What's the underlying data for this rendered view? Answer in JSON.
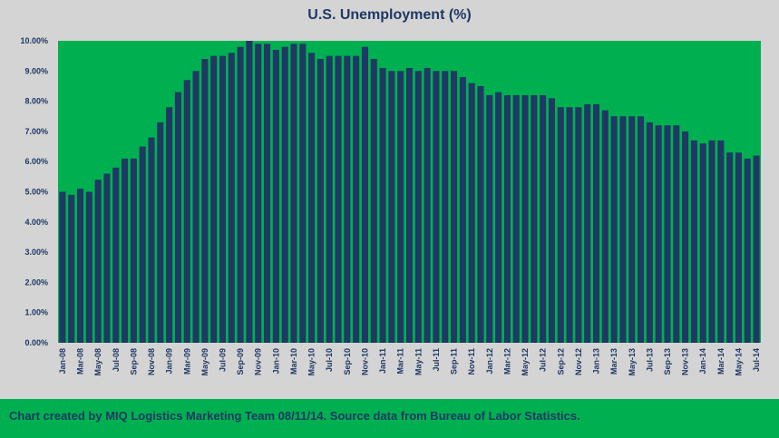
{
  "colors": {
    "background": "#d4d4d4",
    "plot_area": "#00b050",
    "bar": "#1f3864",
    "text": "#1f3864",
    "footer": "#00b050"
  },
  "footer": {
    "text": "Chart created by MIQ Logistics Marketing Team 08/11/14. Source data from Bureau of Labor Statistics."
  },
  "chart_data": {
    "type": "bar",
    "title": "U.S. Unemployment (%)",
    "xlabel": "",
    "ylabel": "",
    "ylim": [
      0,
      10
    ],
    "yticks": [
      "0.00%",
      "1.00%",
      "2.00%",
      "3.00%",
      "4.00%",
      "5.00%",
      "6.00%",
      "7.00%",
      "8.00%",
      "9.00%",
      "10.00%"
    ],
    "grid": false,
    "legend": "none",
    "xtick_labels": [
      "Jan-08",
      "Mar-08",
      "May-08",
      "Jul-08",
      "Sep-08",
      "Nov-08",
      "Jan-09",
      "Mar-09",
      "May-09",
      "Jul-09",
      "Sep-09",
      "Nov-09",
      "Jan-10",
      "Mar-10",
      "May-10",
      "Jul-10",
      "Sep-10",
      "Nov-10",
      "Jan-11",
      "Mar-11",
      "May-11",
      "Jul-11",
      "Sep-11",
      "Nov-11",
      "Jan-12",
      "Mar-12",
      "May-12",
      "Jul-12",
      "Sep-12",
      "Nov-12",
      "Jan-13",
      "Mar-13",
      "May-13",
      "Jul-13",
      "Sep-13",
      "Nov-13",
      "Jan-14",
      "Mar-14",
      "May-14",
      "Jul-14"
    ],
    "categories": [
      "Jan-08",
      "Feb-08",
      "Mar-08",
      "Apr-08",
      "May-08",
      "Jun-08",
      "Jul-08",
      "Aug-08",
      "Sep-08",
      "Oct-08",
      "Nov-08",
      "Dec-08",
      "Jan-09",
      "Feb-09",
      "Mar-09",
      "Apr-09",
      "May-09",
      "Jun-09",
      "Jul-09",
      "Aug-09",
      "Sep-09",
      "Oct-09",
      "Nov-09",
      "Dec-09",
      "Jan-10",
      "Feb-10",
      "Mar-10",
      "Apr-10",
      "May-10",
      "Jun-10",
      "Jul-10",
      "Aug-10",
      "Sep-10",
      "Oct-10",
      "Nov-10",
      "Dec-10",
      "Jan-11",
      "Feb-11",
      "Mar-11",
      "Apr-11",
      "May-11",
      "Jun-11",
      "Jul-11",
      "Aug-11",
      "Sep-11",
      "Oct-11",
      "Nov-11",
      "Dec-11",
      "Jan-12",
      "Feb-12",
      "Mar-12",
      "Apr-12",
      "May-12",
      "Jun-12",
      "Jul-12",
      "Aug-12",
      "Sep-12",
      "Oct-12",
      "Nov-12",
      "Dec-12",
      "Jan-13",
      "Feb-13",
      "Mar-13",
      "Apr-13",
      "May-13",
      "Jun-13",
      "Jul-13",
      "Aug-13",
      "Sep-13",
      "Oct-13",
      "Nov-13",
      "Dec-13",
      "Jan-14",
      "Feb-14",
      "Mar-14",
      "Apr-14",
      "May-14",
      "Jun-14",
      "Jul-14"
    ],
    "values": [
      5.0,
      4.9,
      5.1,
      5.0,
      5.4,
      5.6,
      5.8,
      6.1,
      6.1,
      6.5,
      6.8,
      7.3,
      7.8,
      8.3,
      8.7,
      9.0,
      9.4,
      9.5,
      9.5,
      9.6,
      9.8,
      10.0,
      9.9,
      9.9,
      9.7,
      9.8,
      9.9,
      9.9,
      9.6,
      9.4,
      9.5,
      9.5,
      9.5,
      9.5,
      9.8,
      9.4,
      9.1,
      9.0,
      9.0,
      9.1,
      9.0,
      9.1,
      9.0,
      9.0,
      9.0,
      8.8,
      8.6,
      8.5,
      8.2,
      8.3,
      8.2,
      8.2,
      8.2,
      8.2,
      8.2,
      8.1,
      7.8,
      7.8,
      7.8,
      7.9,
      7.9,
      7.7,
      7.5,
      7.5,
      7.5,
      7.5,
      7.3,
      7.2,
      7.2,
      7.2,
      7.0,
      6.7,
      6.6,
      6.7,
      6.7,
      6.3,
      6.3,
      6.1,
      6.2
    ]
  }
}
